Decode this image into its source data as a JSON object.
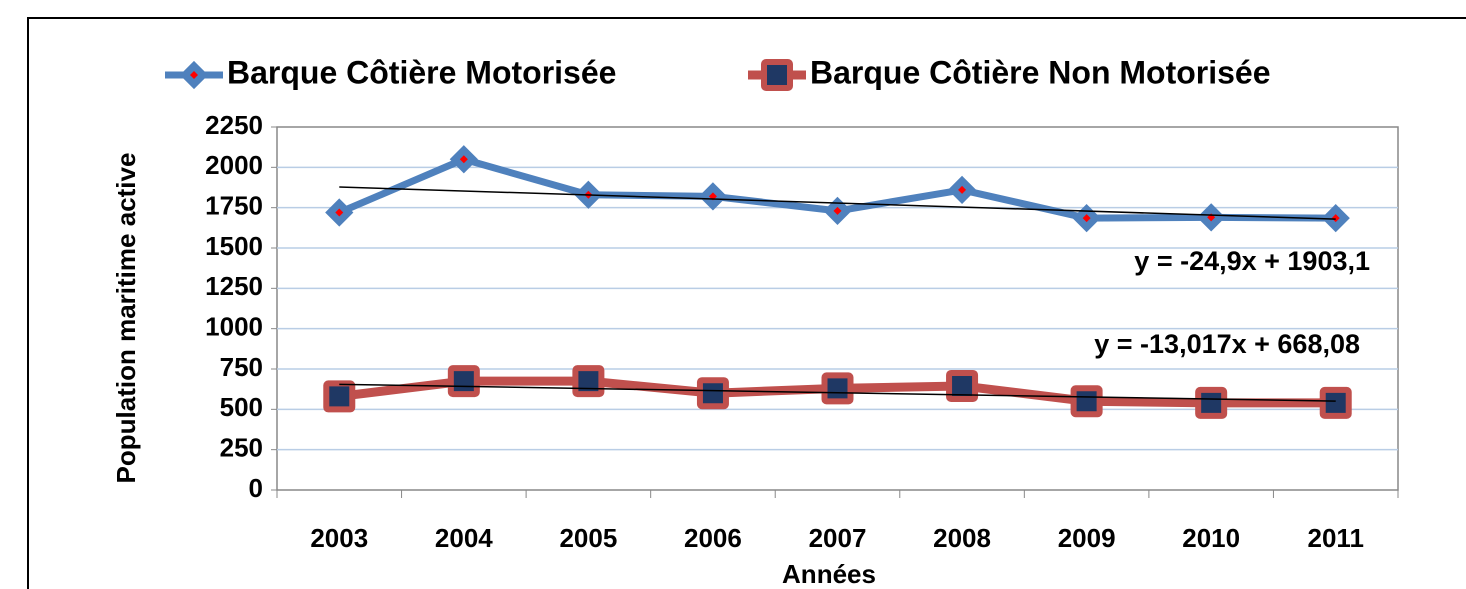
{
  "chart_data": {
    "type": "line",
    "y_label": "Population maritime active",
    "x_label": "Années",
    "categories": [
      "2003",
      "2004",
      "2005",
      "2006",
      "2007",
      "2008",
      "2009",
      "2010",
      "2011"
    ],
    "series": [
      {
        "name": "Barque Côtière Motorisée",
        "color": "#4f81bd",
        "marker": "diamond",
        "values": [
          1720,
          2050,
          1830,
          1820,
          1730,
          1860,
          1685,
          1690,
          1685
        ]
      },
      {
        "name": "Barque Côtière Non Motorisée",
        "color": "#c0504d",
        "marker": "square",
        "values": [
          580,
          675,
          675,
          600,
          630,
          645,
          550,
          540,
          540
        ]
      }
    ],
    "trendlines": [
      {
        "slope": -24.9,
        "intercept": 1903.1,
        "label": "y = -24,9x + 1903,1"
      },
      {
        "slope": -13.017,
        "intercept": 668.08,
        "label": "y = -13,017x + 668,08"
      }
    ],
    "ylim": [
      0,
      2250
    ],
    "yticks": [
      0,
      250,
      500,
      750,
      1000,
      1250,
      1500,
      1750,
      2000,
      2250
    ],
    "grid": true,
    "legend": "top"
  }
}
